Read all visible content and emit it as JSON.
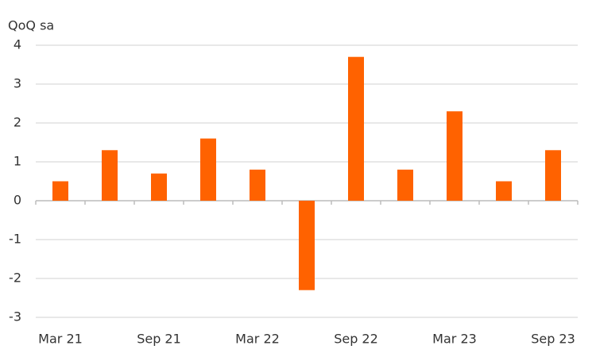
{
  "chart_data": {
    "type": "bar",
    "y_label": "QoQ sa",
    "categories": [
      "Mar 21",
      null,
      "Sep 21",
      null,
      "Mar 22",
      null,
      "Sep 22",
      null,
      "Mar 23",
      null,
      "Sep 23"
    ],
    "values": [
      0.5,
      1.3,
      0.7,
      1.6,
      0.8,
      -2.3,
      3.7,
      0.8,
      2.3,
      0.5,
      1.3
    ],
    "color": "#ff6200",
    "ylim": [
      -3,
      4
    ],
    "yticks": [
      -3,
      -2,
      -1,
      0,
      1,
      2,
      3,
      4
    ],
    "grid": true
  }
}
